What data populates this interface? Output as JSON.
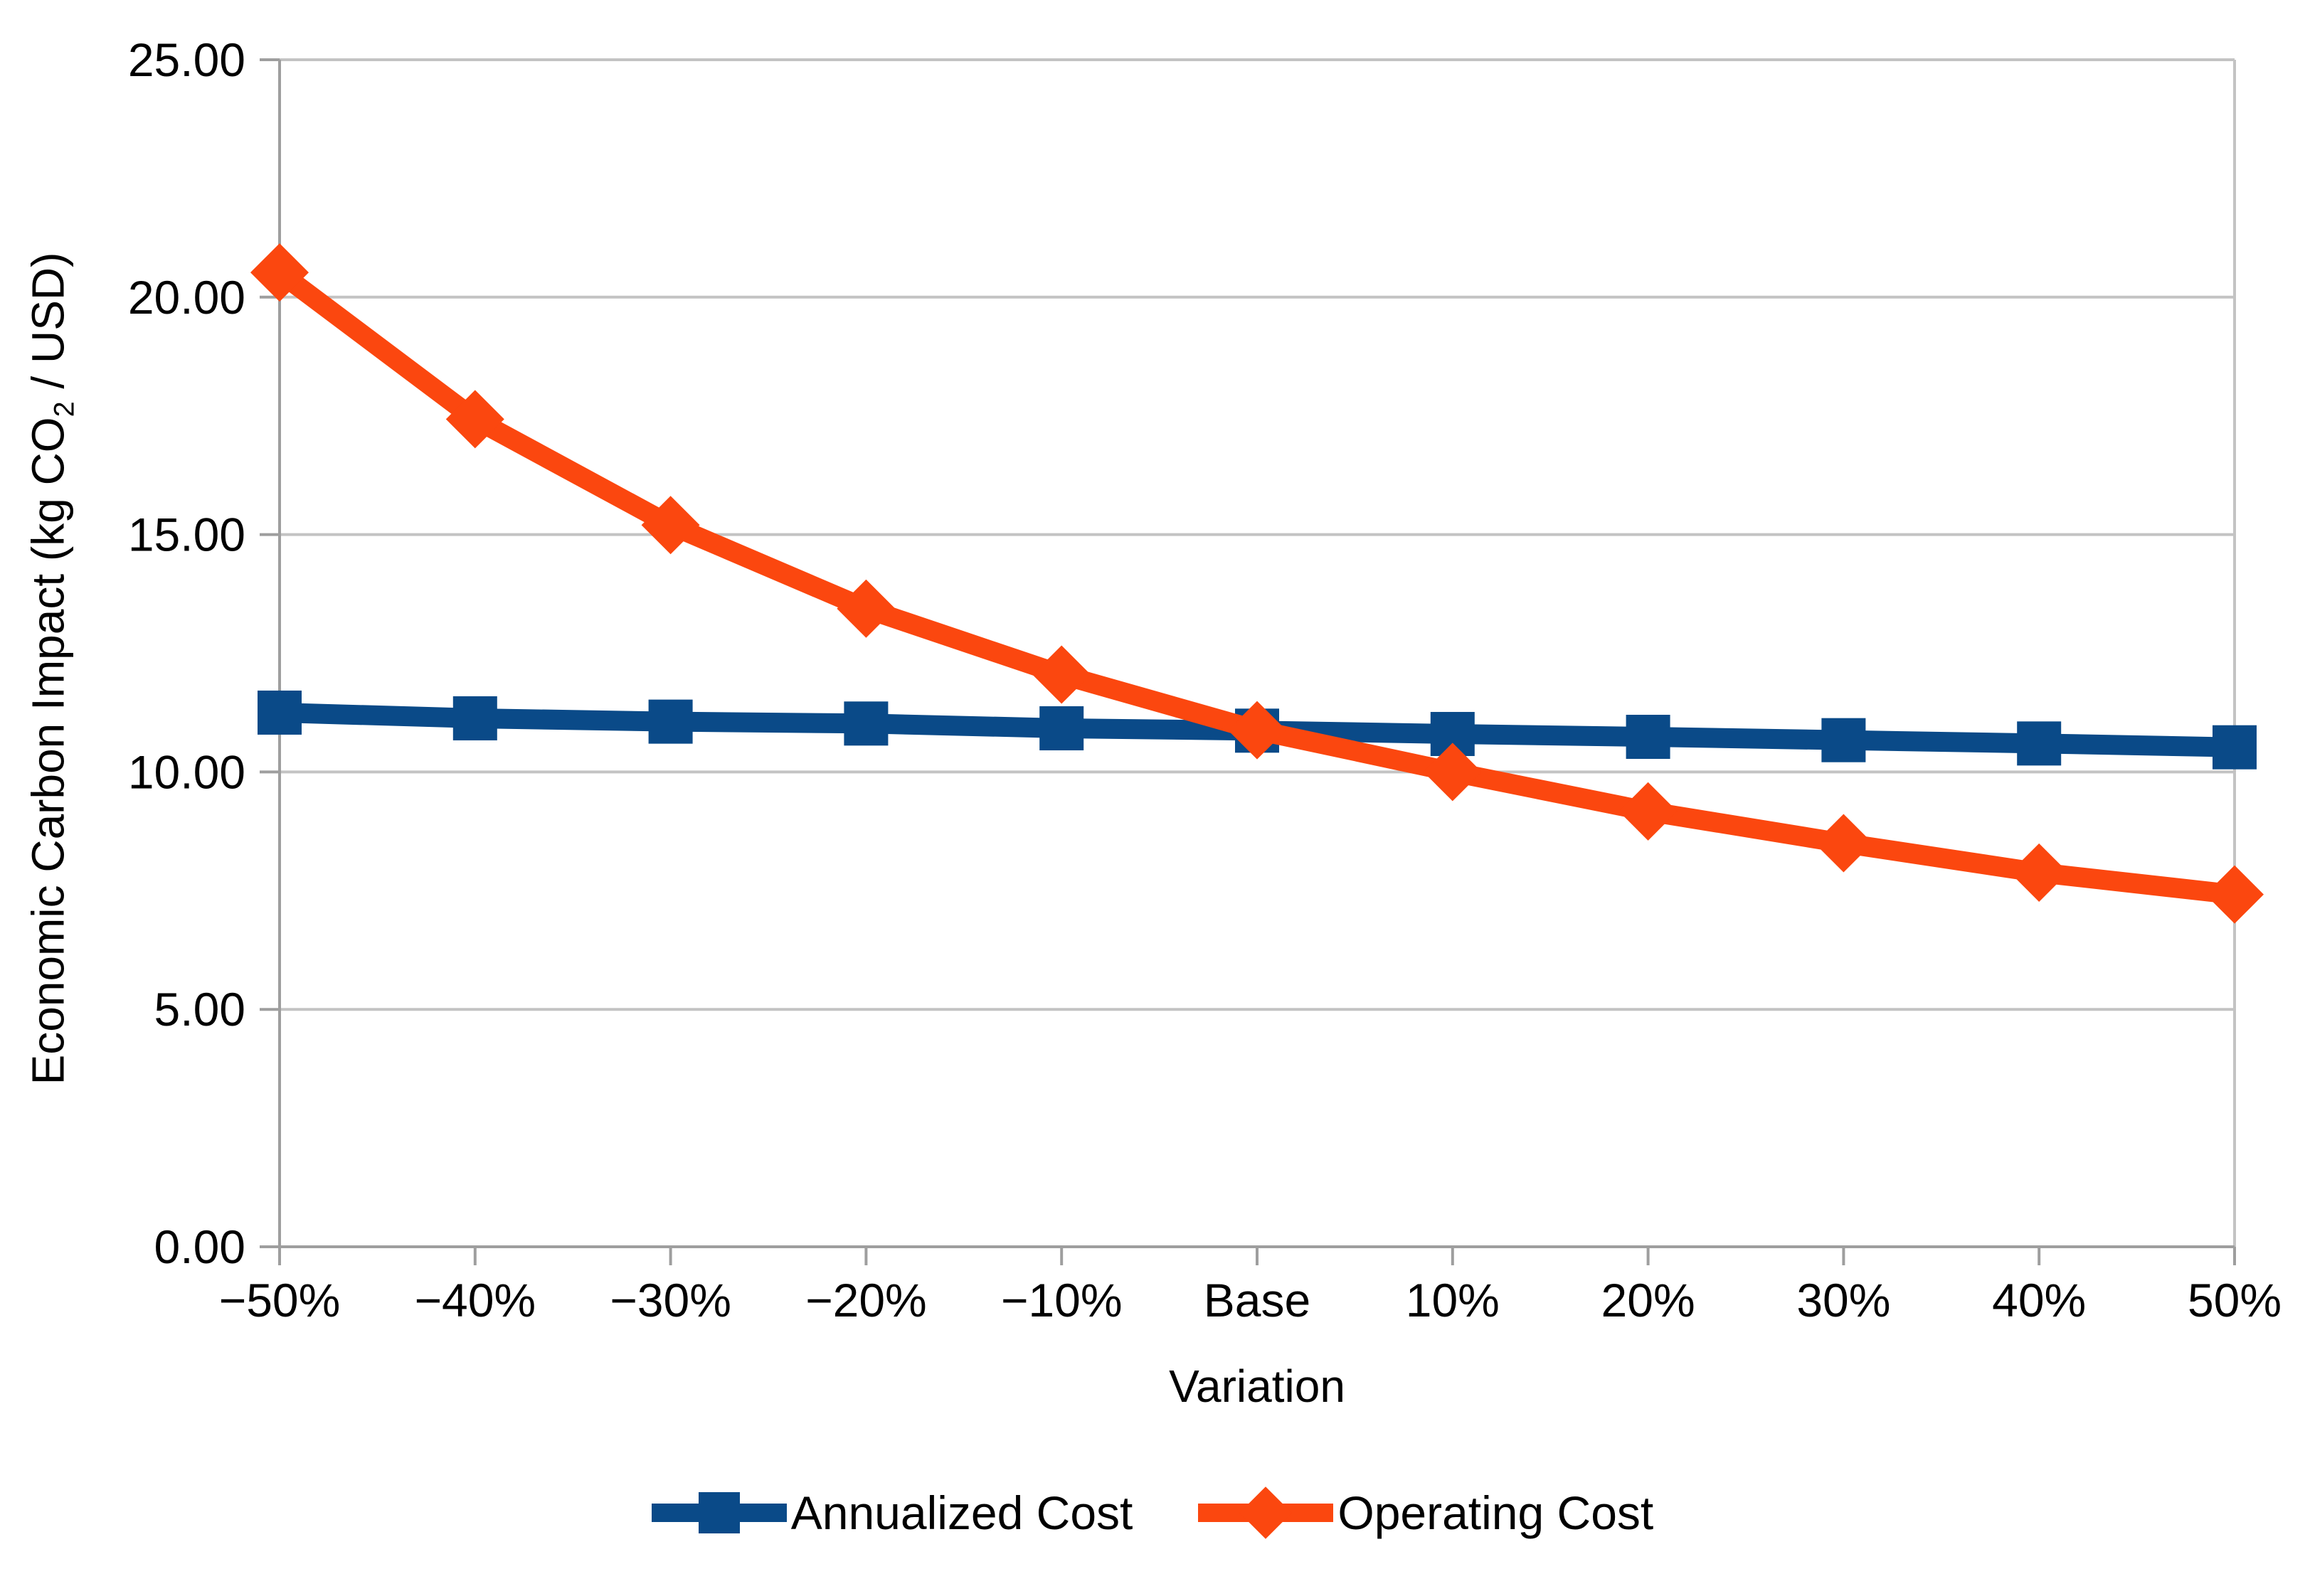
{
  "chart_data": {
    "type": "line",
    "title": "",
    "xlabel": "Variation",
    "ylabel": "Economic Carbon Impact (kg CO2 / USD)",
    "ylabel_parts": {
      "pre": "Economic Carbon Impact (kg CO",
      "sub": "2",
      "post": " / USD)"
    },
    "categories": [
      "−50%",
      "−40%",
      "−30%",
      "−20%",
      "−10%",
      "Base",
      "10%",
      "20%",
      "30%",
      "40%",
      "50%"
    ],
    "series": [
      {
        "name": "Annualized Cost",
        "marker": "square",
        "color": "#0A4A88",
        "values": [
          11.25,
          11.13,
          11.06,
          11.02,
          10.92,
          10.87,
          10.8,
          10.74,
          10.67,
          10.6,
          10.52
        ]
      },
      {
        "name": "Operating Cost",
        "marker": "diamond",
        "color": "#FB470F",
        "values": [
          20.52,
          17.43,
          15.2,
          13.44,
          12.05,
          10.88,
          10.0,
          9.17,
          8.5,
          7.88,
          7.42
        ]
      }
    ],
    "y_ticks": [
      {
        "value": 0,
        "label": "0.00"
      },
      {
        "value": 5,
        "label": "5.00"
      },
      {
        "value": 10,
        "label": "10.00"
      },
      {
        "value": 15,
        "label": "15.00"
      },
      {
        "value": 20,
        "label": "20.00"
      },
      {
        "value": 25,
        "label": "25.00"
      }
    ],
    "ylim": [
      0,
      25
    ],
    "grid": true,
    "legend_position": "bottom",
    "style": {
      "gridline_color": "#C3C3C3",
      "axis_color": "#9E9E9E",
      "text_color": "#000000",
      "background": "#FFFFFF"
    }
  }
}
